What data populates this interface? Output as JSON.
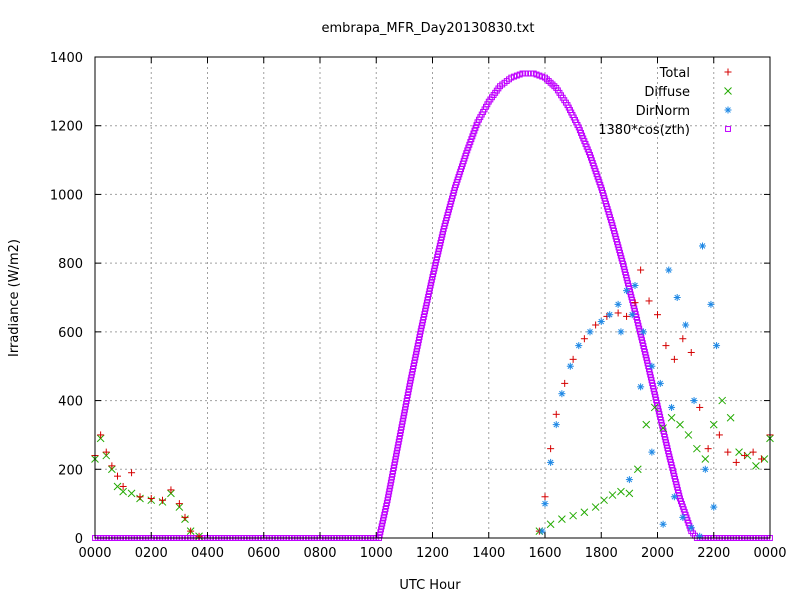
{
  "chart_data": {
    "type": "scatter",
    "title": "embrapa_MFR_Day20130830.txt",
    "xlabel": "UTC Hour",
    "ylabel": "Irradiance (W/m2)",
    "xlim": [
      0,
      24
    ],
    "ylim": [
      0,
      1400
    ],
    "x_tick_labels": [
      "0000",
      "0200",
      "0400",
      "0600",
      "0800",
      "1000",
      "1200",
      "1400",
      "1600",
      "1800",
      "2000",
      "2200",
      "0000"
    ],
    "y_tick_labels": [
      "0",
      "200",
      "400",
      "600",
      "800",
      "1000",
      "1200",
      "1400"
    ],
    "y_tick_values": [
      0,
      200,
      400,
      600,
      800,
      1000,
      1200,
      1400
    ],
    "grid": true,
    "legend_position": "top-right",
    "series": [
      {
        "name": "Total",
        "color": "#d40000",
        "marker": "plus",
        "points": [
          [
            0,
            240
          ],
          [
            0.2,
            300
          ],
          [
            0.4,
            250
          ],
          [
            0.6,
            210
          ],
          [
            0.8,
            180
          ],
          [
            1.0,
            150
          ],
          [
            1.3,
            190
          ],
          [
            1.6,
            120
          ],
          [
            2.0,
            115
          ],
          [
            2.4,
            110
          ],
          [
            2.7,
            140
          ],
          [
            3.0,
            100
          ],
          [
            3.2,
            60
          ],
          [
            3.4,
            20
          ],
          [
            3.7,
            5
          ],
          [
            15.8,
            20
          ],
          [
            16.0,
            120
          ],
          [
            16.2,
            260
          ],
          [
            16.4,
            360
          ],
          [
            16.7,
            450
          ],
          [
            17.0,
            520
          ],
          [
            17.4,
            580
          ],
          [
            17.8,
            620
          ],
          [
            18.2,
            645
          ],
          [
            18.6,
            655
          ],
          [
            18.9,
            645
          ],
          [
            19.2,
            685
          ],
          [
            19.4,
            780
          ],
          [
            19.7,
            690
          ],
          [
            20.0,
            650
          ],
          [
            20.3,
            560
          ],
          [
            20.6,
            520
          ],
          [
            20.9,
            580
          ],
          [
            21.2,
            540
          ],
          [
            21.5,
            380
          ],
          [
            21.8,
            260
          ],
          [
            22.2,
            300
          ],
          [
            22.5,
            250
          ],
          [
            22.8,
            220
          ],
          [
            23.1,
            240
          ],
          [
            23.4,
            250
          ],
          [
            23.7,
            230
          ],
          [
            24.0,
            300
          ]
        ]
      },
      {
        "name": "Diffuse",
        "color": "#22aa00",
        "marker": "x",
        "points": [
          [
            0,
            230
          ],
          [
            0.2,
            290
          ],
          [
            0.4,
            240
          ],
          [
            0.6,
            200
          ],
          [
            0.8,
            150
          ],
          [
            1.0,
            135
          ],
          [
            1.3,
            130
          ],
          [
            1.6,
            115
          ],
          [
            2.0,
            110
          ],
          [
            2.4,
            105
          ],
          [
            2.7,
            130
          ],
          [
            3.0,
            90
          ],
          [
            3.2,
            55
          ],
          [
            3.4,
            20
          ],
          [
            3.7,
            5
          ],
          [
            15.8,
            20
          ],
          [
            16.2,
            40
          ],
          [
            16.6,
            55
          ],
          [
            17.0,
            65
          ],
          [
            17.4,
            75
          ],
          [
            17.8,
            90
          ],
          [
            18.1,
            110
          ],
          [
            18.4,
            125
          ],
          [
            18.7,
            135
          ],
          [
            19.0,
            130
          ],
          [
            19.3,
            200
          ],
          [
            19.6,
            330
          ],
          [
            19.9,
            380
          ],
          [
            20.2,
            320
          ],
          [
            20.5,
            350
          ],
          [
            20.8,
            330
          ],
          [
            21.1,
            300
          ],
          [
            21.4,
            260
          ],
          [
            21.7,
            230
          ],
          [
            22.0,
            330
          ],
          [
            22.3,
            400
          ],
          [
            22.6,
            350
          ],
          [
            22.9,
            250
          ],
          [
            23.2,
            240
          ],
          [
            23.5,
            210
          ],
          [
            23.8,
            230
          ],
          [
            24.0,
            290
          ]
        ]
      },
      {
        "name": "DirNorm",
        "color": "#1e88e5",
        "marker": "star",
        "points": [
          [
            15.9,
            20
          ],
          [
            16.0,
            100
          ],
          [
            16.2,
            220
          ],
          [
            16.4,
            330
          ],
          [
            16.6,
            420
          ],
          [
            16.9,
            500
          ],
          [
            17.2,
            560
          ],
          [
            17.6,
            600
          ],
          [
            18.0,
            630
          ],
          [
            18.3,
            650
          ],
          [
            18.6,
            680
          ],
          [
            18.9,
            720
          ],
          [
            19.2,
            735
          ],
          [
            19.5,
            600
          ],
          [
            19.8,
            500
          ],
          [
            20.1,
            450
          ],
          [
            20.4,
            780
          ],
          [
            20.7,
            700
          ],
          [
            21.0,
            620
          ],
          [
            21.3,
            400
          ],
          [
            21.6,
            850
          ],
          [
            21.9,
            680
          ],
          [
            22.1,
            560
          ],
          [
            20.2,
            40
          ],
          [
            20.6,
            120
          ],
          [
            20.9,
            60
          ],
          [
            21.2,
            30
          ],
          [
            21.5,
            5
          ],
          [
            19.0,
            170
          ],
          [
            19.4,
            440
          ],
          [
            19.8,
            250
          ],
          [
            20.5,
            380
          ],
          [
            21.7,
            200
          ],
          [
            22.0,
            90
          ],
          [
            18.7,
            600
          ],
          [
            19.1,
            650
          ]
        ]
      },
      {
        "name": "1380*cos(zth)",
        "color": "#c000ff",
        "marker": "square",
        "points": [
          [
            0,
            0
          ],
          [
            1,
            0
          ],
          [
            2,
            0
          ],
          [
            3,
            0
          ],
          [
            4,
            0
          ],
          [
            5,
            0
          ],
          [
            6,
            0
          ],
          [
            7,
            0
          ],
          [
            8,
            0
          ],
          [
            9,
            0
          ],
          [
            10,
            0
          ],
          [
            10.1,
            0
          ],
          [
            10.4,
            110
          ],
          [
            10.8,
            280
          ],
          [
            11.2,
            450
          ],
          [
            11.6,
            610
          ],
          [
            12.0,
            760
          ],
          [
            12.4,
            900
          ],
          [
            12.8,
            1020
          ],
          [
            13.2,
            1120
          ],
          [
            13.6,
            1210
          ],
          [
            14.0,
            1270
          ],
          [
            14.4,
            1315
          ],
          [
            14.8,
            1340
          ],
          [
            15.2,
            1352
          ],
          [
            15.6,
            1352
          ],
          [
            16.0,
            1340
          ],
          [
            16.4,
            1310
          ],
          [
            16.8,
            1260
          ],
          [
            17.2,
            1195
          ],
          [
            17.6,
            1115
          ],
          [
            18.0,
            1020
          ],
          [
            18.4,
            910
          ],
          [
            18.8,
            790
          ],
          [
            19.2,
            660
          ],
          [
            19.6,
            525
          ],
          [
            20.0,
            385
          ],
          [
            20.4,
            245
          ],
          [
            20.8,
            115
          ],
          [
            21.2,
            20
          ],
          [
            21.4,
            0
          ],
          [
            22,
            0
          ],
          [
            23,
            0
          ],
          [
            24,
            0
          ]
        ]
      }
    ]
  }
}
